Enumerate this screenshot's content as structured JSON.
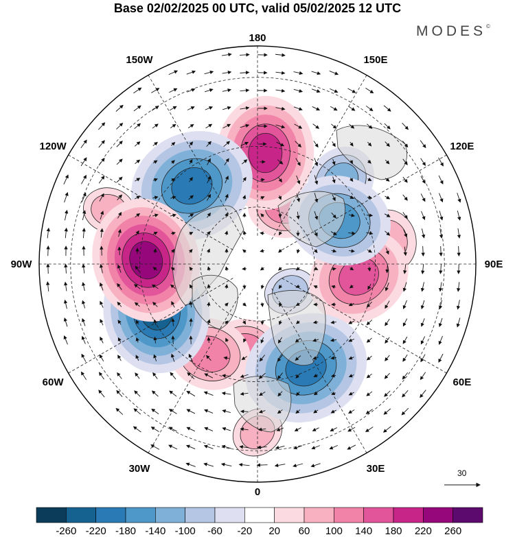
{
  "title": "Base 02/02/2025 00 UTC, valid 05/02/2025 12 UTC",
  "brand": "MODES",
  "brand_mark": "©",
  "longitude_labels": [
    {
      "lon": 180,
      "label": "180"
    },
    {
      "lon": -150,
      "label": "150W"
    },
    {
      "lon": 150,
      "label": "150E"
    },
    {
      "lon": -120,
      "label": "120W"
    },
    {
      "lon": 120,
      "label": "120E"
    },
    {
      "lon": -90,
      "label": "90W"
    },
    {
      "lon": 90,
      "label": "90E"
    },
    {
      "lon": -60,
      "label": "60W"
    },
    {
      "lon": 60,
      "label": "60E"
    },
    {
      "lon": -30,
      "label": "30W"
    },
    {
      "lon": 30,
      "label": "30E"
    },
    {
      "lon": 0,
      "label": "0"
    }
  ],
  "reference_vector": {
    "label": "30"
  },
  "colorbar": {
    "ticks": [
      "-260",
      "-220",
      "-180",
      "-140",
      "-100",
      "-60",
      "-20",
      "20",
      "60",
      "100",
      "140",
      "180",
      "220",
      "260"
    ],
    "colors": [
      "#0b3d5b",
      "#15618f",
      "#2a7bb5",
      "#4e98c9",
      "#7fb0d8",
      "#b4c6e4",
      "#dedff0",
      "#ffffff",
      "#fbdbe1",
      "#f7b1c1",
      "#f182a8",
      "#e2559a",
      "#c82588",
      "#95077a",
      "#5d0a6e"
    ]
  },
  "anomaly_centers": [
    {
      "lon": -92,
      "lat": 52,
      "value": 240
    },
    {
      "lon": -65,
      "lat": 52,
      "value": -220
    },
    {
      "lon": -140,
      "lat": 55,
      "value": -200
    },
    {
      "lon": 176,
      "lat": 52,
      "value": 180
    },
    {
      "lon": 25,
      "lat": 51,
      "value": -200
    },
    {
      "lon": 83,
      "lat": 55,
      "value": 160
    },
    {
      "lon": 118,
      "lat": 58,
      "value": -160
    },
    {
      "lon": 135,
      "lat": 50,
      "value": -100
    },
    {
      "lon": -28,
      "lat": 55,
      "value": 120
    },
    {
      "lon": -8,
      "lat": 60,
      "value": 100
    },
    {
      "lon": 155,
      "lat": 68,
      "value": 100
    },
    {
      "lon": -160,
      "lat": 62,
      "value": 60
    },
    {
      "lon": 100,
      "lat": 45,
      "value": 80
    },
    {
      "lon": 50,
      "lat": 75,
      "value": -60
    },
    {
      "lon": -110,
      "lat": 38,
      "value": 60
    },
    {
      "lon": 0,
      "lat": 35,
      "value": 60
    }
  ]
}
